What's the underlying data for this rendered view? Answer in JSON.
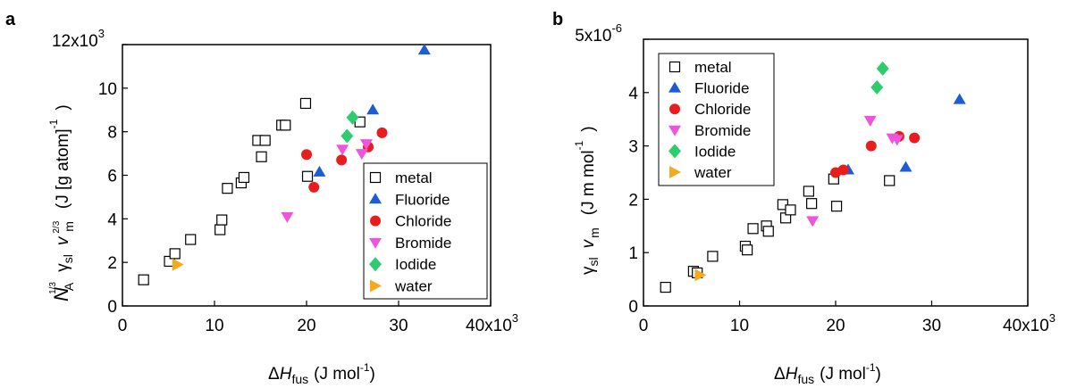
{
  "chart_data": [
    {
      "type": "scatter",
      "panel_label": "a",
      "xlim": [
        0,
        40000
      ],
      "ylim": [
        0,
        12000
      ],
      "xticks": [
        "0",
        "10",
        "20",
        "30",
        "40x10"
      ],
      "xtick_exp": "3",
      "yticks": [
        "0",
        "2",
        "4",
        "6",
        "8",
        "10",
        "12x10"
      ],
      "ytick_exp": "3",
      "grid": false,
      "legend_position": "bottom-right",
      "xlabel": {
        "delta": "Δ",
        "H": "H",
        "sub": "fus",
        "unit": "(J mol",
        "exp": "-1",
        "close": ")"
      },
      "ylabel": {
        "N": "N",
        "N_sub": "A",
        "N_sup": "1/3",
        "gamma": "γ",
        "gamma_sub": "sl",
        "v": "v",
        "v_sub": "m",
        "v_sup": "2/3",
        "unit": "(J [g atom]",
        "exp": "-1",
        "close": ")"
      },
      "series": [
        {
          "name": "metal",
          "marker": "square-open",
          "color": "#000000",
          "x": [
            2300,
            5100,
            5700,
            7400,
            10600,
            10800,
            11400,
            12900,
            13200,
            14700,
            15100,
            15500,
            17300,
            17700,
            19900,
            20100,
            25800
          ],
          "y": [
            1200,
            2050,
            2400,
            3050,
            3500,
            3950,
            5400,
            5650,
            5900,
            7600,
            6850,
            7600,
            8300,
            8300,
            9300,
            5950,
            8450
          ]
        },
        {
          "name": "Fluoride",
          "marker": "triangle-up",
          "color": "#1e5bd6",
          "x": [
            21400,
            27200,
            32800
          ],
          "y": [
            6150,
            9000,
            11750
          ]
        },
        {
          "name": "Chloride",
          "marker": "circle",
          "color": "#e81e1e",
          "x": [
            20000,
            20800,
            23800,
            26700,
            28200
          ],
          "y": [
            6950,
            5450,
            6700,
            7300,
            7950
          ]
        },
        {
          "name": "Bromide",
          "marker": "triangle-down",
          "color": "#ee55dd",
          "x": [
            17900,
            23900,
            26000,
            26500
          ],
          "y": [
            4100,
            7200,
            7000,
            7450
          ]
        },
        {
          "name": "Iodide",
          "marker": "diamond",
          "color": "#2ecb6f",
          "x": [
            24400,
            25000
          ],
          "y": [
            7800,
            8650
          ]
        },
        {
          "name": "water",
          "marker": "triangle-right",
          "color": "#f6a81f",
          "x": [
            6000
          ],
          "y": [
            1900
          ]
        }
      ]
    },
    {
      "type": "scatter",
      "panel_label": "b",
      "xlim": [
        0,
        40000
      ],
      "ylim": [
        0,
        5e-06
      ],
      "xticks": [
        "0",
        "10",
        "20",
        "30",
        "40x10"
      ],
      "xtick_exp": "3",
      "yticks": [
        "0",
        "1",
        "2",
        "3",
        "4",
        "5x10"
      ],
      "ytick_exp": "-6",
      "grid": false,
      "legend_position": "top-left",
      "xlabel": {
        "delta": "Δ",
        "H": "H",
        "sub": "fus",
        "unit": "(J mol",
        "exp": "-1",
        "close": ")"
      },
      "ylabel": {
        "gamma": "γ",
        "gamma_sub": "sl",
        "v": "v",
        "v_sub": "m",
        "unit": "(J m mol",
        "exp": "-1",
        "close": ")"
      },
      "series": [
        {
          "name": "metal",
          "marker": "square-open",
          "color": "#000000",
          "x": [
            2300,
            5200,
            5600,
            7200,
            10600,
            10800,
            11400,
            12800,
            13000,
            14500,
            14800,
            15300,
            17200,
            17500,
            19800,
            20100,
            25600
          ],
          "y": [
            3.5e-07,
            6.5e-07,
            6.2e-07,
            9.3e-07,
            1.12e-06,
            1.05e-06,
            1.45e-06,
            1.5e-06,
            1.4e-06,
            1.9e-06,
            1.65e-06,
            1.8e-06,
            2.15e-06,
            1.92e-06,
            2.38e-06,
            1.87e-06,
            2.35e-06
          ]
        },
        {
          "name": "Fluoride",
          "marker": "triangle-up",
          "color": "#1e5bd6",
          "x": [
            21300,
            27300,
            32900
          ],
          "y": [
            2.55e-06,
            2.6e-06,
            3.87e-06
          ]
        },
        {
          "name": "Chloride",
          "marker": "circle",
          "color": "#e81e1e",
          "x": [
            20000,
            20800,
            23700,
            26600,
            28200
          ],
          "y": [
            2.5e-06,
            2.55e-06,
            3e-06,
            3.18e-06,
            3.15e-06
          ]
        },
        {
          "name": "Bromide",
          "marker": "triangle-down",
          "color": "#ee55dd",
          "x": [
            17600,
            23600,
            25900,
            26400
          ],
          "y": [
            1.6e-06,
            3.48e-06,
            3.15e-06,
            3.12e-06
          ]
        },
        {
          "name": "Iodide",
          "marker": "diamond",
          "color": "#2ecb6f",
          "x": [
            24300,
            24900
          ],
          "y": [
            4.1e-06,
            4.45e-06
          ]
        },
        {
          "name": "water",
          "marker": "triangle-right",
          "color": "#f6a81f",
          "x": [
            5900
          ],
          "y": [
            5.8e-07
          ]
        }
      ]
    }
  ]
}
